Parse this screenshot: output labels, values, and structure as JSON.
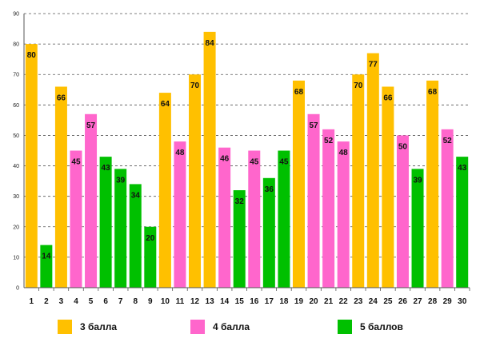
{
  "chart_data": {
    "type": "bar",
    "title": "",
    "xlabel": "",
    "ylabel": "",
    "ylim": [
      0,
      90
    ],
    "yticks": [
      0,
      10,
      20,
      30,
      40,
      50,
      60,
      70,
      80,
      90
    ],
    "grid": "horizontal dashed",
    "categories": [
      "1",
      "2",
      "3",
      "4",
      "5",
      "6",
      "7",
      "8",
      "9",
      "10",
      "11",
      "12",
      "13",
      "14",
      "15",
      "16",
      "17",
      "18",
      "19",
      "20",
      "21",
      "22",
      "23",
      "24",
      "25",
      "26",
      "27",
      "28",
      "29",
      "30"
    ],
    "values": [
      80,
      14,
      66,
      45,
      57,
      43,
      39,
      34,
      20,
      64,
      48,
      70,
      84,
      46,
      32,
      45,
      36,
      45,
      68,
      57,
      52,
      48,
      70,
      77,
      66,
      50,
      39,
      68,
      52,
      43
    ],
    "groups": [
      "3",
      "5",
      "3",
      "4",
      "4",
      "5",
      "5",
      "5",
      "5",
      "3",
      "4",
      "3",
      "3",
      "4",
      "5",
      "4",
      "5",
      "5",
      "3",
      "4",
      "4",
      "4",
      "3",
      "3",
      "3",
      "4",
      "5",
      "3",
      "4",
      "5"
    ],
    "legend_position": "bottom",
    "legend": [
      {
        "key": "3",
        "label": "3 балла",
        "color": "#FFC000"
      },
      {
        "key": "4",
        "label": "4 балла",
        "color": "#FF66CC"
      },
      {
        "key": "5",
        "label": "5 баллов",
        "color": "#00C000"
      }
    ],
    "axis_color": "#555555",
    "grid_color": "#555555"
  }
}
